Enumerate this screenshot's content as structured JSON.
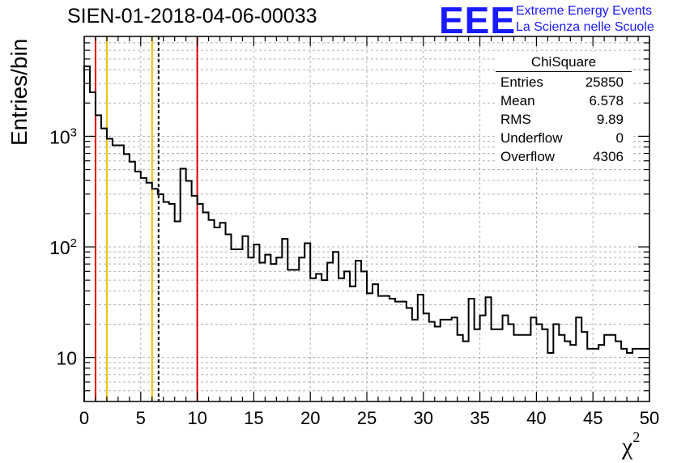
{
  "header": {
    "title": "SIEN-01-2018-04-06-00033",
    "logo_mark": "EEE",
    "logo_line1": "Extreme Energy Events",
    "logo_line2": "La Scienza nelle Scuole"
  },
  "stats": {
    "title": "ChiSquare",
    "rows": [
      {
        "label": "Entries",
        "value": "25850"
      },
      {
        "label": "Mean",
        "value": "6.578"
      },
      {
        "label": "RMS",
        "value": "9.89"
      },
      {
        "label": "Underflow",
        "value": "0"
      },
      {
        "label": "Overflow",
        "value": "4306"
      }
    ]
  },
  "colors": {
    "red_line": "#e00000",
    "yellow_line": "#f0c000",
    "histogram": "#000000",
    "grid": "#b0b0b0",
    "logo": "#1a1aff"
  },
  "chart_data": {
    "type": "histogram",
    "title": "SIEN-01-2018-04-06-00033",
    "xlabel": "χ",
    "xlabel_superscript": "2",
    "ylabel": "Entries/bin",
    "xlim": [
      0,
      50
    ],
    "ylim": [
      4,
      8000
    ],
    "yscale": "log",
    "grid": true,
    "legend": "top-right",
    "x_ticks": [
      "0",
      "5",
      "10",
      "15",
      "20",
      "25",
      "30",
      "35",
      "40",
      "45",
      "50"
    ],
    "y_ticks": [
      {
        "value": 10,
        "label": "10"
      },
      {
        "value": 100,
        "label": "10",
        "exp": "2"
      },
      {
        "value": 1000,
        "label": "10",
        "exp": "3"
      }
    ],
    "bin_width": 0.5,
    "values": [
      4300,
      2500,
      1550,
      1180,
      950,
      830,
      830,
      690,
      590,
      480,
      420,
      380,
      335,
      300,
      255,
      245,
      170,
      510,
      395,
      290,
      245,
      205,
      175,
      150,
      165,
      130,
      95,
      95,
      125,
      80,
      105,
      72,
      85,
      70,
      80,
      118,
      62,
      62,
      80,
      108,
      52,
      57,
      50,
      72,
      90,
      52,
      60,
      44,
      75,
      60,
      38,
      46,
      36,
      36,
      34,
      32,
      32,
      28,
      22,
      37,
      25,
      21,
      19,
      22,
      22,
      23,
      16,
      14,
      34,
      18,
      24,
      35,
      18,
      18,
      24,
      20,
      16,
      16,
      16,
      23,
      20,
      18,
      11,
      20,
      16,
      14,
      13,
      23,
      17,
      12,
      12,
      13,
      16,
      16,
      14,
      12,
      11,
      12,
      12,
      12,
      12
    ],
    "vertical_lines": [
      {
        "x": 1,
        "color": "#e00000",
        "style": "solid"
      },
      {
        "x": 2,
        "color": "#f0c000",
        "style": "solid"
      },
      {
        "x": 6,
        "color": "#f0c000",
        "style": "solid"
      },
      {
        "x": 6.578,
        "color": "#000000",
        "style": "dashed"
      },
      {
        "x": 10,
        "color": "#e00000",
        "style": "solid"
      }
    ]
  }
}
